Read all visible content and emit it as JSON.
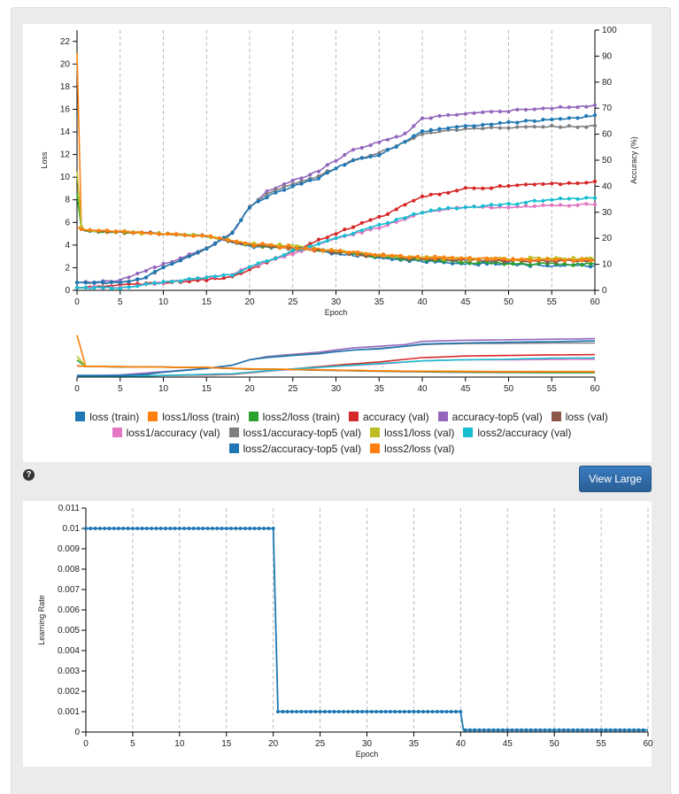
{
  "actions": {
    "view_large_label": "View Large"
  },
  "icons": {
    "help": "question-circle-icon"
  },
  "chart_data": [
    {
      "type": "line",
      "xlabel": "Epoch",
      "ylabel": "Loss",
      "y2label": "Accuracy (%)",
      "xlim": [
        0,
        60
      ],
      "ylim": [
        0,
        23
      ],
      "y2lim": [
        0,
        100
      ],
      "x_ticks": [
        0,
        5,
        10,
        15,
        20,
        25,
        30,
        35,
        40,
        45,
        50,
        55,
        60
      ],
      "y_ticks": [
        0,
        2,
        4,
        6,
        8,
        10,
        12,
        14,
        16,
        18,
        20,
        22
      ],
      "y2_ticks": [
        0,
        10,
        20,
        30,
        40,
        50,
        60,
        70,
        80,
        90,
        100
      ],
      "grid": "vertical",
      "legend_position": "bottom",
      "series": [
        {
          "name": "loss (train)",
          "axis": "loss",
          "color": "#1f77b4",
          "x": [
            0,
            0.5,
            1,
            3,
            6,
            10,
            15,
            20,
            25,
            30,
            35,
            40,
            45,
            50,
            55,
            60
          ],
          "y": [
            5.6,
            5.4,
            5.3,
            5.2,
            5.1,
            5.0,
            4.8,
            3.9,
            3.7,
            3.3,
            2.9,
            2.6,
            2.4,
            2.3,
            2.2,
            2.2
          ]
        },
        {
          "name": "loss1/loss (train)",
          "axis": "loss",
          "color": "#ff7f0e",
          "x": [
            0,
            0.5,
            1,
            3,
            6,
            10,
            15,
            20,
            25,
            30,
            35,
            40,
            45,
            50,
            55,
            60
          ],
          "y": [
            21.0,
            5.6,
            5.3,
            5.2,
            5.1,
            5.0,
            4.8,
            4.0,
            3.8,
            3.4,
            3.1,
            2.9,
            2.8,
            2.7,
            2.7,
            2.7
          ]
        },
        {
          "name": "loss2/loss (train)",
          "axis": "loss",
          "color": "#2ca02c",
          "x": [
            0,
            0.5,
            1,
            3,
            6,
            10,
            15,
            20,
            25,
            30,
            35,
            40,
            45,
            50,
            55,
            60
          ],
          "y": [
            8.5,
            5.5,
            5.3,
            5.2,
            5.1,
            5.0,
            4.8,
            4.0,
            3.8,
            3.4,
            3.0,
            2.7,
            2.5,
            2.4,
            2.3,
            2.3
          ]
        },
        {
          "name": "accuracy (val)",
          "axis": "accuracy",
          "color": "#d62728",
          "x": [
            0,
            5,
            10,
            15,
            18,
            20,
            25,
            30,
            35,
            40,
            42,
            45,
            50,
            55,
            60
          ],
          "y": [
            1,
            2,
            3,
            4,
            5,
            8,
            15,
            22,
            28,
            36,
            37,
            39,
            40,
            41,
            41.5
          ]
        },
        {
          "name": "accuracy-top5 (val)",
          "axis": "accuracy",
          "color": "#9467bd",
          "x": [
            0,
            2,
            5,
            10,
            15,
            18,
            20,
            22,
            25,
            28,
            30,
            32,
            35,
            38,
            40,
            42,
            45,
            50,
            55,
            60
          ],
          "y": [
            3,
            3,
            4,
            10,
            16,
            22,
            32,
            38,
            42,
            46,
            50,
            54,
            57,
            60,
            66,
            67,
            68,
            69,
            70,
            71
          ]
        },
        {
          "name": "loss (val)",
          "axis": "loss",
          "color": "#8c564b",
          "x": [
            0,
            0.5,
            1,
            5,
            10,
            15,
            20,
            25,
            30,
            35,
            40,
            45,
            50,
            55,
            60
          ],
          "y": [
            5.6,
            5.4,
            5.3,
            5.2,
            5.0,
            4.8,
            4.0,
            3.8,
            3.4,
            3.0,
            2.8,
            2.7,
            2.6,
            2.6,
            2.6
          ]
        },
        {
          "name": "loss1/accuracy (val)",
          "axis": "accuracy",
          "color": "#e377c2",
          "x": [
            0,
            5,
            10,
            15,
            18,
            20,
            25,
            30,
            35,
            40,
            42,
            45,
            50,
            55,
            60
          ],
          "y": [
            1,
            1,
            3,
            5,
            6,
            9,
            14,
            20,
            24,
            30,
            31,
            32,
            32,
            32.5,
            33
          ]
        },
        {
          "name": "loss1/accuracy-top5 (val)",
          "axis": "accuracy",
          "color": "#7f7f7f",
          "x": [
            0,
            2,
            5,
            8,
            10,
            15,
            18,
            20,
            22,
            25,
            28,
            30,
            32,
            35,
            38,
            40,
            42,
            45,
            50,
            55,
            60
          ],
          "y": [
            3,
            3,
            3,
            5,
            9,
            16,
            22,
            32,
            37,
            41,
            44,
            47,
            50,
            53,
            57,
            60,
            61,
            62,
            62.5,
            63,
            63
          ]
        },
        {
          "name": "loss1/loss (val)",
          "axis": "loss",
          "color": "#bcbd22",
          "x": [
            0,
            0.5,
            1,
            5,
            10,
            15,
            20,
            25,
            30,
            35,
            40,
            45,
            50,
            55,
            60
          ],
          "y": [
            10.5,
            5.6,
            5.3,
            5.2,
            5.0,
            4.8,
            4.1,
            3.9,
            3.5,
            3.1,
            2.9,
            2.8,
            2.8,
            2.8,
            2.8
          ]
        },
        {
          "name": "loss2/accuracy (val)",
          "axis": "accuracy",
          "color": "#17becf",
          "x": [
            0,
            5,
            10,
            15,
            18,
            20,
            25,
            30,
            35,
            40,
            42,
            45,
            50,
            55,
            60
          ],
          "y": [
            1,
            1,
            3,
            5,
            6,
            9,
            15,
            20,
            25,
            30,
            31,
            32,
            33,
            35,
            35.5
          ]
        },
        {
          "name": "loss2/accuracy-top5 (val)",
          "axis": "accuracy",
          "color": "#1f77b4",
          "x": [
            0,
            2,
            5,
            8,
            10,
            15,
            18,
            20,
            22,
            25,
            28,
            30,
            32,
            35,
            38,
            40,
            42,
            45,
            50,
            55,
            60
          ],
          "y": [
            3,
            3,
            3,
            5,
            9,
            16,
            22,
            32,
            36,
            40,
            43,
            47,
            50,
            52,
            57,
            61,
            62,
            63,
            64.5,
            65.5,
            67
          ]
        },
        {
          "name": "loss2/loss (val)",
          "axis": "loss",
          "color": "#ff7f0e",
          "x": [
            0,
            0.5,
            1,
            5,
            10,
            15,
            20,
            25,
            30,
            35,
            40,
            45,
            50,
            55,
            60
          ],
          "y": [
            5.6,
            5.4,
            5.3,
            5.2,
            5.0,
            4.8,
            4.1,
            3.8,
            3.5,
            3.1,
            2.9,
            2.8,
            2.7,
            2.7,
            2.7
          ]
        }
      ]
    },
    {
      "type": "line",
      "role": "overview",
      "xlim": [
        0,
        60
      ],
      "x_ticks": [
        0,
        5,
        10,
        15,
        20,
        25,
        30,
        35,
        40,
        45,
        50,
        55,
        60
      ]
    },
    {
      "type": "line",
      "xlabel": "Epoch",
      "ylabel": "Learning Rate",
      "xlim": [
        0,
        60
      ],
      "ylim": [
        0,
        0.011
      ],
      "x_ticks": [
        0,
        5,
        10,
        15,
        20,
        25,
        30,
        35,
        40,
        45,
        50,
        55,
        60
      ],
      "y_ticks": [
        "0",
        "0.001",
        "0.002",
        "0.003",
        "0.004",
        "0.005",
        "0.006",
        "0.007",
        "0.008",
        "0.009",
        "0.01",
        "0.011"
      ],
      "grid": "vertical",
      "series": [
        {
          "name": "",
          "color": "#1f77b4",
          "x": [
            0,
            20,
            20.5,
            40,
            40.3,
            60
          ],
          "y": [
            0.01,
            0.01,
            0.001,
            0.001,
            0.0001,
            0.0001
          ]
        }
      ]
    }
  ]
}
